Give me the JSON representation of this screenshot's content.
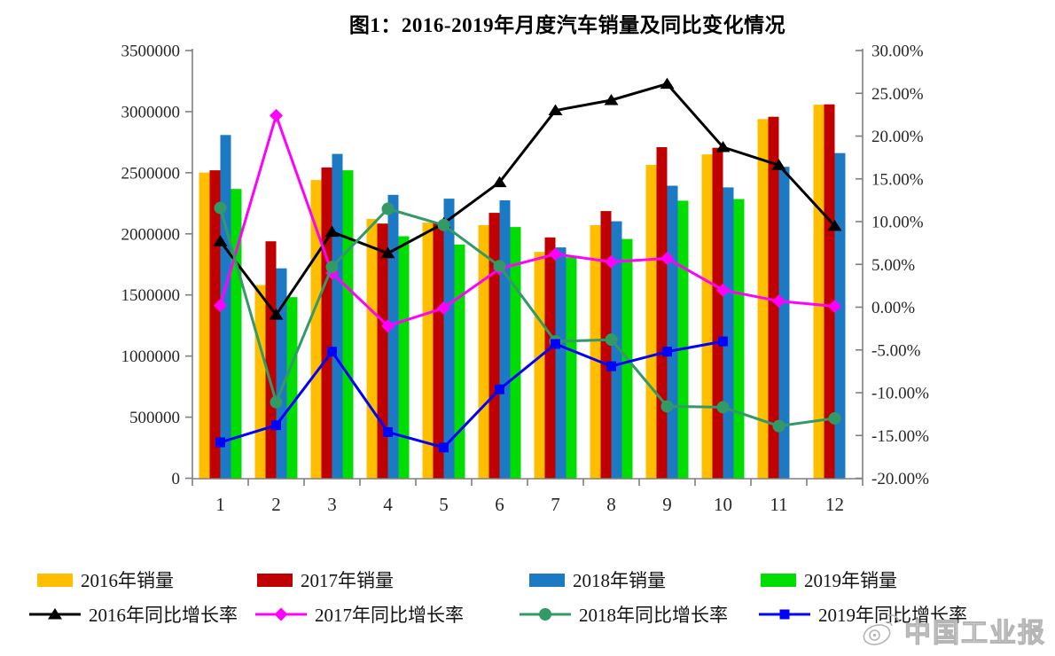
{
  "chart_data": {
    "type": "combo bar+line, dual y-axis",
    "title": "图1：2016-2019年月度汽车销量及同比变化情况",
    "categories": [
      "1",
      "2",
      "3",
      "4",
      "5",
      "6",
      "7",
      "8",
      "9",
      "10",
      "11",
      "12"
    ],
    "grid": false,
    "legend_position": "bottom",
    "left_axis": {
      "min": 0,
      "max": 3500000,
      "step": 500000,
      "tick_labels": [
        "3500000",
        "3000000",
        "2500000",
        "2000000",
        "1500000",
        "1000000",
        "500000",
        "0"
      ]
    },
    "right_axis": {
      "min": -20,
      "max": 30,
      "step": 5,
      "tick_labels": [
        "30.00%",
        "25.00%",
        "20.00%",
        "15.00%",
        "10.00%",
        "5.00%",
        "0.00%",
        "-5.00%",
        "-10.00%",
        "-15.00%",
        "-20.00%"
      ]
    },
    "bar_series": [
      {
        "name": "2016年销量",
        "color": "#FFBE00",
        "values": [
          2501000,
          1581000,
          2440000,
          2122000,
          2092000,
          2071000,
          1852000,
          2071000,
          2564000,
          2650000,
          2939000,
          3057000
        ]
      },
      {
        "name": "2017年销量",
        "color": "#C00000",
        "values": [
          2520000,
          1939000,
          2543000,
          2084000,
          2096000,
          2172000,
          1971000,
          2186000,
          2709000,
          2704000,
          2958000,
          3060000
        ]
      },
      {
        "name": "2018年销量",
        "color": "#1C7AC5",
        "values": [
          2809000,
          1718000,
          2654000,
          2319000,
          2288000,
          2274000,
          1889000,
          2103000,
          2394000,
          2380000,
          2548000,
          2661000
        ]
      },
      {
        "name": "2019年销量",
        "color": "#00DD00",
        "values": [
          2367000,
          1482000,
          2520000,
          1980000,
          1913000,
          2056000,
          1808000,
          1958000,
          2271000,
          2284000,
          null,
          null
        ]
      }
    ],
    "line_series": [
      {
        "name": "2016年同比增长率",
        "color": "#000000",
        "marker": "triangle",
        "values": [
          7.7,
          -0.9,
          8.8,
          6.3,
          9.8,
          14.6,
          23.0,
          24.2,
          26.1,
          18.7,
          16.6,
          9.5
        ]
      },
      {
        "name": "2017年同比增长率",
        "color": "#FF00FF",
        "marker": "diamond",
        "values": [
          0.2,
          22.4,
          4.0,
          -2.2,
          -0.1,
          4.5,
          6.2,
          5.3,
          5.7,
          2.0,
          0.7,
          0.1
        ]
      },
      {
        "name": "2018年同比增长率",
        "color": "#339966",
        "marker": "circle",
        "values": [
          11.6,
          -11.1,
          4.7,
          11.5,
          9.6,
          4.8,
          -4.0,
          -3.8,
          -11.6,
          -11.7,
          -13.9,
          -13.0
        ]
      },
      {
        "name": "2019年同比增长率",
        "color": "#0000FF",
        "marker": "square",
        "values": [
          -15.8,
          -13.8,
          -5.2,
          -14.6,
          -16.4,
          -9.6,
          -4.3,
          -6.9,
          -5.2,
          -4.0,
          null,
          null
        ]
      }
    ],
    "axis_color": "#7f7f7f",
    "tick_text_color": "#262626"
  },
  "watermark": {
    "text": "中国工业报",
    "icon": "weibo-logo",
    "color": "#b5b5b5"
  }
}
